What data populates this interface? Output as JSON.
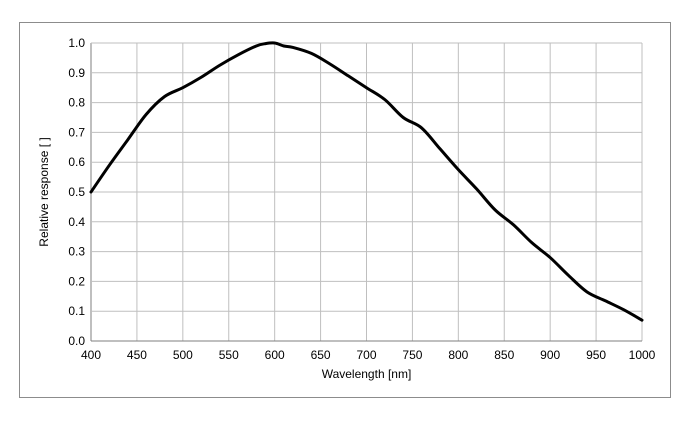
{
  "chart_data": {
    "type": "line",
    "xlabel": "Wavelength [nm]",
    "ylabel": "Relative response [ ]",
    "xlim": [
      400,
      1000
    ],
    "ylim": [
      0.0,
      1.0
    ],
    "x_ticks": [
      400,
      450,
      500,
      550,
      600,
      650,
      700,
      750,
      800,
      850,
      900,
      950,
      1000
    ],
    "y_ticks": [
      "0.0",
      "0.1",
      "0.2",
      "0.3",
      "0.4",
      "0.5",
      "0.6",
      "0.7",
      "0.8",
      "0.9",
      "1.0"
    ],
    "grid": true,
    "legend": false,
    "line_color": "#000000",
    "grid_color": "#bfbfbf",
    "series": [
      {
        "x": [
          400,
          420,
          440,
          460,
          480,
          500,
          520,
          540,
          560,
          580,
          590,
          600,
          610,
          620,
          640,
          660,
          680,
          700,
          720,
          740,
          760,
          780,
          800,
          820,
          840,
          860,
          880,
          900,
          920,
          940,
          960,
          980,
          1000
        ],
        "y": [
          0.5,
          0.59,
          0.675,
          0.76,
          0.82,
          0.85,
          0.885,
          0.925,
          0.96,
          0.99,
          0.998,
          1.0,
          0.99,
          0.985,
          0.965,
          0.93,
          0.89,
          0.85,
          0.81,
          0.75,
          0.715,
          0.645,
          0.575,
          0.51,
          0.44,
          0.39,
          0.33,
          0.28,
          0.22,
          0.165,
          0.135,
          0.105,
          0.07
        ]
      }
    ]
  }
}
